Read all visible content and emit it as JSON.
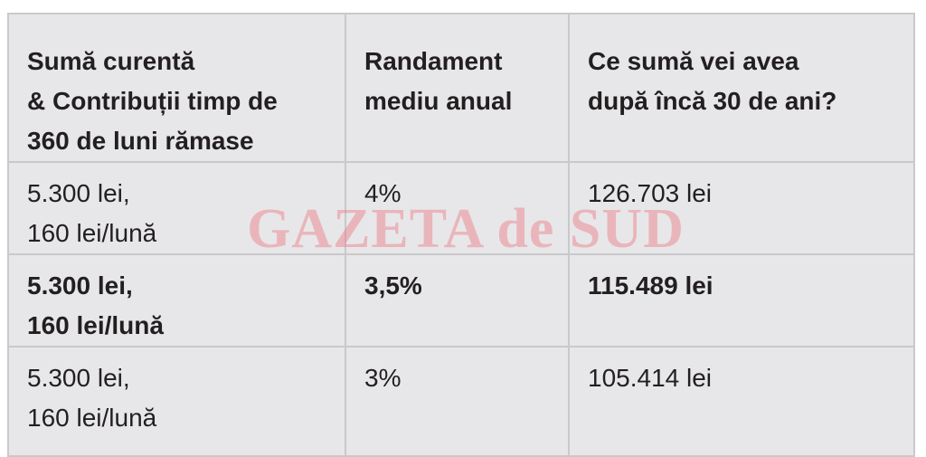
{
  "table": {
    "header": [
      [
        "Sumă curentă",
        "& Contribuții timp de",
        "360 de luni rămase"
      ],
      [
        "Randament",
        "mediu anual"
      ],
      [
        "Ce sumă vei avea",
        "după încă 30 de ani?"
      ]
    ],
    "rows": [
      [
        [
          "5.300 lei,",
          "160 lei/lună"
        ],
        [
          "4%"
        ],
        [
          "126.703 lei"
        ]
      ],
      [
        [
          "5.300 lei,",
          "160 lei/lună"
        ],
        [
          "3,5%"
        ],
        [
          "115.489 lei"
        ]
      ],
      [
        [
          "5.300 lei,",
          "160 lei/lună"
        ],
        [
          "3%"
        ],
        [
          "105.414 lei"
        ]
      ]
    ]
  },
  "watermark": "GAZETA de SUD"
}
